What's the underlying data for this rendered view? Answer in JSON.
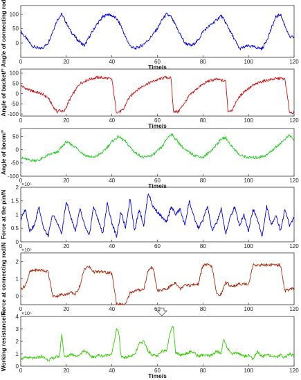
{
  "chart_data": [
    {
      "type": "line",
      "ylabel": "Angle of connecting rod/°",
      "xlabel": "Time/s",
      "xlim": [
        0,
        120
      ],
      "ylim": [
        -50,
        130
      ],
      "yticks": [
        0,
        50,
        100
      ],
      "color": "#0000dd",
      "x": [
        0,
        3,
        5,
        8,
        10,
        12,
        14,
        16,
        18,
        20,
        22,
        25,
        28,
        30,
        33,
        36,
        38,
        40,
        42,
        44,
        46,
        48,
        50,
        53,
        56,
        60,
        62,
        64,
        66,
        68,
        70,
        72,
        75,
        78,
        80,
        83,
        86,
        88,
        90,
        92,
        94,
        96,
        98,
        100,
        103,
        106,
        108,
        110,
        112,
        114,
        116,
        118,
        120
      ],
      "values": [
        40,
        10,
        -10,
        -20,
        -15,
        0,
        40,
        80,
        100,
        70,
        40,
        10,
        -10,
        20,
        60,
        90,
        100,
        95,
        85,
        60,
        20,
        -10,
        -20,
        -10,
        10,
        50,
        80,
        100,
        90,
        60,
        30,
        0,
        -10,
        10,
        40,
        60,
        80,
        95,
        70,
        40,
        10,
        -20,
        -15,
        -10,
        -15,
        -20,
        10,
        50,
        90,
        100,
        60,
        20,
        20
      ]
    },
    {
      "type": "line",
      "ylabel": "Angle of bucket/°",
      "xlabel": "Time/s",
      "xlim": [
        0,
        120
      ],
      "ylim": [
        -110,
        120
      ],
      "yticks": [
        -100,
        -50,
        0,
        50,
        100
      ],
      "color": "#cc1010",
      "x": [
        0,
        3,
        6,
        9,
        12,
        14,
        16,
        17,
        19,
        21,
        23,
        26,
        30,
        34,
        38,
        40,
        42,
        43,
        45,
        47,
        50,
        54,
        58,
        62,
        64,
        66,
        67,
        69,
        71,
        74,
        78,
        82,
        86,
        88,
        90,
        91,
        93,
        95,
        98,
        102,
        106,
        110,
        114,
        116,
        118,
        120
      ],
      "values": [
        40,
        20,
        10,
        0,
        -20,
        -60,
        -90,
        -80,
        -90,
        -40,
        0,
        50,
        70,
        80,
        75,
        70,
        -90,
        -90,
        -80,
        -30,
        10,
        40,
        60,
        75,
        80,
        75,
        -85,
        -90,
        -60,
        -10,
        30,
        60,
        70,
        65,
        60,
        -85,
        -80,
        -30,
        10,
        40,
        60,
        70,
        75,
        70,
        -90,
        -95
      ]
    },
    {
      "type": "line",
      "ylabel": "Angle of boom/°",
      "xlabel": "Time/s",
      "xlim": [
        0,
        120
      ],
      "ylim": [
        -100,
        80
      ],
      "yticks": [
        -100,
        -50,
        0,
        50
      ],
      "color": "#22cc22",
      "x": [
        0,
        4,
        8,
        12,
        16,
        20,
        24,
        28,
        32,
        36,
        40,
        43,
        46,
        50,
        54,
        58,
        62,
        64,
        66,
        68,
        72,
        76,
        80,
        84,
        88,
        90,
        92,
        96,
        100,
        104,
        108,
        112,
        116,
        118,
        120
      ],
      "values": [
        -30,
        -40,
        -40,
        -20,
        -10,
        30,
        10,
        -20,
        -30,
        -10,
        30,
        50,
        30,
        -10,
        -30,
        -20,
        10,
        40,
        60,
        40,
        0,
        -20,
        -30,
        0,
        40,
        45,
        20,
        -20,
        -30,
        -30,
        -20,
        10,
        40,
        55,
        35
      ]
    },
    {
      "type": "line",
      "ylabel": "Force at the pin/N",
      "xlabel": "",
      "xlim": [
        0,
        120
      ],
      "ylim": [
        0,
        200000
      ],
      "yticks": [
        0,
        50000,
        100000,
        150000,
        200000
      ],
      "tick_labels": [
        "0",
        "0.5",
        "1",
        "1.5",
        "2"
      ],
      "exponent": "×10⁵",
      "color": "#0000dd",
      "x": [
        0,
        2,
        4,
        6,
        8,
        10,
        12,
        14,
        16,
        18,
        20,
        22,
        24,
        26,
        28,
        30,
        32,
        34,
        36,
        38,
        40,
        42,
        44,
        46,
        48,
        50,
        52,
        54,
        56,
        58,
        60,
        62,
        64,
        66,
        68,
        70,
        72,
        74,
        76,
        78,
        80,
        82,
        84,
        86,
        88,
        90,
        92,
        94,
        96,
        98,
        100,
        102,
        104,
        106,
        108,
        110,
        112,
        114,
        116,
        118,
        120
      ],
      "values": [
        80000,
        120000,
        40000,
        60000,
        130000,
        50000,
        20000,
        100000,
        70000,
        30000,
        150000,
        90000,
        40000,
        120000,
        60000,
        20000,
        130000,
        80000,
        30000,
        140000,
        70000,
        20000,
        110000,
        50000,
        160000,
        40000,
        120000,
        60000,
        180000,
        130000,
        110000,
        90000,
        70000,
        130000,
        100000,
        120000,
        60000,
        150000,
        90000,
        50000,
        80000,
        130000,
        40000,
        70000,
        120000,
        30000,
        90000,
        130000,
        60000,
        100000,
        40000,
        120000,
        80000,
        20000,
        130000,
        60000,
        100000,
        40000,
        120000,
        60000,
        90000
      ]
    },
    {
      "type": "line",
      "ylabel": "Force at connecting rod/N",
      "xlabel": "",
      "xlim": [
        0,
        120
      ],
      "ylim": [
        -50000,
        250000
      ],
      "yticks": [
        0,
        100000,
        200000
      ],
      "tick_labels": [
        "0",
        "1",
        "2"
      ],
      "exponent": "×10⁵",
      "color": "#aa2a10",
      "x": [
        0,
        2,
        4,
        6,
        8,
        10,
        12,
        14,
        16,
        18,
        20,
        22,
        24,
        26,
        28,
        30,
        32,
        34,
        36,
        40,
        42,
        44,
        46,
        48,
        50,
        54,
        56,
        58,
        60,
        64,
        66,
        68,
        70,
        72,
        74,
        78,
        80,
        82,
        84,
        86,
        88,
        90,
        92,
        94,
        96,
        100,
        102,
        104,
        106,
        108,
        110,
        114,
        116,
        118,
        120
      ],
      "values": [
        40000,
        60000,
        140000,
        150000,
        150000,
        150000,
        140000,
        0,
        0,
        10000,
        10000,
        20000,
        10000,
        60000,
        160000,
        170000,
        140000,
        140000,
        140000,
        130000,
        -40000,
        -50000,
        -50000,
        20000,
        30000,
        40000,
        150000,
        170000,
        30000,
        40000,
        60000,
        80000,
        40000,
        70000,
        60000,
        70000,
        180000,
        180000,
        170000,
        10000,
        10000,
        80000,
        60000,
        60000,
        70000,
        70000,
        180000,
        180000,
        180000,
        180000,
        180000,
        180000,
        30000,
        40000,
        40000
      ]
    },
    {
      "type": "line",
      "ylabel": "Working resistance/N",
      "xlabel": "Time/s",
      "xlim": [
        0,
        120
      ],
      "ylim": [
        0,
        400000
      ],
      "yticks": [
        0,
        100000,
        200000,
        300000,
        400000
      ],
      "tick_labels": [
        "0",
        "1",
        "2",
        "3",
        "4"
      ],
      "exponent": "×10⁵",
      "color": "#33cc00",
      "x": [
        0,
        3,
        6,
        9,
        12,
        15,
        17,
        18,
        19,
        20,
        22,
        25,
        28,
        30,
        32,
        34,
        36,
        40,
        42,
        43,
        44,
        46,
        48,
        50,
        52,
        54,
        56,
        58,
        60,
        62,
        64,
        66,
        67,
        68,
        70,
        72,
        75,
        78,
        80,
        83,
        86,
        88,
        89,
        90,
        92,
        95,
        98,
        100,
        102,
        104,
        106,
        108,
        110,
        112,
        114,
        116,
        118,
        120
      ],
      "values": [
        60000,
        70000,
        60000,
        80000,
        50000,
        70000,
        80000,
        260000,
        90000,
        70000,
        100000,
        80000,
        130000,
        90000,
        70000,
        90000,
        80000,
        100000,
        290000,
        280000,
        80000,
        70000,
        80000,
        90000,
        180000,
        200000,
        120000,
        90000,
        80000,
        120000,
        130000,
        300000,
        320000,
        110000,
        90000,
        100000,
        120000,
        80000,
        90000,
        80000,
        120000,
        100000,
        220000,
        180000,
        100000,
        110000,
        80000,
        90000,
        60000,
        120000,
        70000,
        100000,
        80000,
        70000,
        90000,
        70000,
        100000,
        80000
      ]
    }
  ],
  "arrow_icon": "down-arrow-icon",
  "xticks": [
    0,
    20,
    40,
    60,
    80,
    100,
    120
  ]
}
